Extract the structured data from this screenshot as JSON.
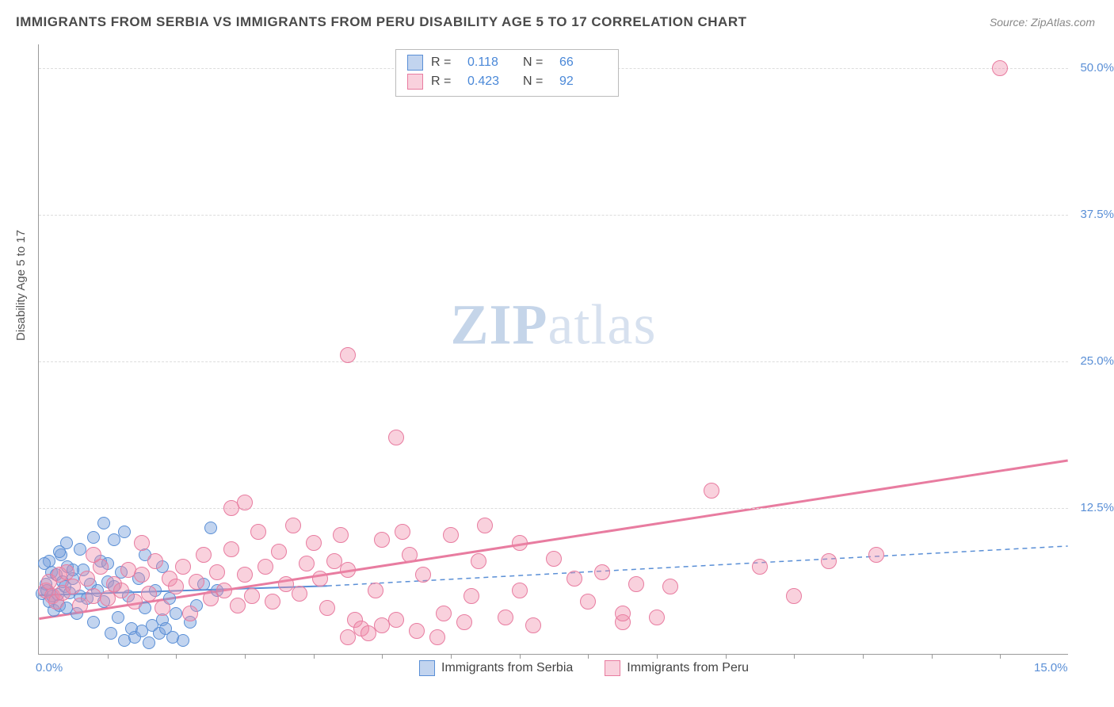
{
  "title": "IMMIGRANTS FROM SERBIA VS IMMIGRANTS FROM PERU DISABILITY AGE 5 TO 17 CORRELATION CHART",
  "source": "Source: ZipAtlas.com",
  "ylabel": "Disability Age 5 to 17",
  "watermark_bold": "ZIP",
  "watermark_rest": "atlas",
  "chart": {
    "type": "scatter",
    "xlim": [
      0,
      15
    ],
    "ylim": [
      0,
      52
    ],
    "x_tick_labels": {
      "0": "0.0%",
      "15": "15.0%"
    },
    "x_minor_ticks": [
      1,
      2,
      3,
      4,
      5,
      6,
      7,
      8,
      9,
      10,
      11,
      12,
      13,
      14
    ],
    "y_ticks": [
      12.5,
      25.0,
      37.5,
      50.0
    ],
    "y_tick_labels": [
      "12.5%",
      "25.0%",
      "37.5%",
      "50.0%"
    ],
    "grid_color": "#dddddd",
    "axis_color": "#999999",
    "background_color": "#ffffff"
  },
  "series": [
    {
      "name": "Immigrants from Serbia",
      "legend_key": "serbia",
      "R": "0.118",
      "N": "66",
      "color_fill": "rgba(120,160,220,0.45)",
      "color_stroke": "#5a8fd6",
      "trend": {
        "x1": 0,
        "y1": 5.0,
        "x2": 4.2,
        "y2": 5.8,
        "solid": true,
        "dash_x2": 15,
        "dash_y2": 9.2,
        "width": 2
      },
      "marker_radius": 8,
      "points": [
        [
          0.05,
          5.2
        ],
        [
          0.1,
          6.0
        ],
        [
          0.12,
          5.5
        ],
        [
          0.15,
          4.5
        ],
        [
          0.18,
          7.0
        ],
        [
          0.2,
          5.0
        ],
        [
          0.22,
          3.8
        ],
        [
          0.25,
          6.8
        ],
        [
          0.28,
          5.1
        ],
        [
          0.3,
          4.2
        ],
        [
          0.32,
          8.5
        ],
        [
          0.35,
          6.2
        ],
        [
          0.38,
          5.8
        ],
        [
          0.4,
          4.0
        ],
        [
          0.42,
          7.5
        ],
        [
          0.45,
          5.3
        ],
        [
          0.5,
          6.5
        ],
        [
          0.55,
          3.5
        ],
        [
          0.6,
          5.0
        ],
        [
          0.65,
          7.2
        ],
        [
          0.7,
          4.8
        ],
        [
          0.75,
          6.0
        ],
        [
          0.8,
          2.8
        ],
        [
          0.85,
          5.5
        ],
        [
          0.9,
          8.0
        ],
        [
          0.95,
          4.5
        ],
        [
          1.0,
          6.2
        ],
        [
          1.05,
          1.8
        ],
        [
          1.1,
          5.8
        ],
        [
          1.15,
          3.2
        ],
        [
          1.2,
          7.0
        ],
        [
          1.25,
          1.2
        ],
        [
          1.3,
          5.0
        ],
        [
          1.35,
          2.2
        ],
        [
          1.4,
          1.5
        ],
        [
          1.45,
          6.5
        ],
        [
          1.5,
          2.0
        ],
        [
          1.55,
          4.0
        ],
        [
          1.6,
          1.0
        ],
        [
          1.65,
          2.5
        ],
        [
          1.7,
          5.5
        ],
        [
          1.75,
          1.8
        ],
        [
          1.8,
          3.0
        ],
        [
          1.85,
          2.2
        ],
        [
          1.9,
          4.8
        ],
        [
          1.95,
          1.5
        ],
        [
          2.0,
          3.5
        ],
        [
          2.1,
          1.2
        ],
        [
          2.2,
          2.8
        ],
        [
          2.3,
          4.2
        ],
        [
          0.95,
          11.2
        ],
        [
          1.1,
          9.8
        ],
        [
          1.25,
          10.5
        ],
        [
          2.5,
          10.8
        ],
        [
          0.6,
          9.0
        ],
        [
          0.8,
          10.0
        ],
        [
          0.4,
          9.5
        ],
        [
          0.3,
          8.8
        ],
        [
          0.15,
          8.0
        ],
        [
          0.08,
          7.8
        ],
        [
          1.55,
          8.5
        ],
        [
          1.8,
          7.5
        ],
        [
          2.4,
          6.0
        ],
        [
          2.6,
          5.5
        ],
        [
          1.0,
          7.8
        ],
        [
          0.5,
          7.2
        ]
      ]
    },
    {
      "name": "Immigrants from Peru",
      "legend_key": "peru",
      "R": "0.423",
      "N": "92",
      "color_fill": "rgba(240,140,170,0.4)",
      "color_stroke": "#e87ca0",
      "trend": {
        "x1": 0,
        "y1": 3.0,
        "x2": 15,
        "y2": 16.5,
        "solid": true,
        "width": 3
      },
      "marker_radius": 10,
      "points": [
        [
          0.1,
          5.5
        ],
        [
          0.15,
          6.2
        ],
        [
          0.2,
          5.0
        ],
        [
          0.25,
          4.5
        ],
        [
          0.3,
          6.8
        ],
        [
          0.35,
          5.3
        ],
        [
          0.4,
          7.0
        ],
        [
          0.5,
          5.8
        ],
        [
          0.6,
          4.2
        ],
        [
          0.7,
          6.5
        ],
        [
          0.8,
          5.0
        ],
        [
          0.9,
          7.5
        ],
        [
          1.0,
          4.8
        ],
        [
          1.1,
          6.0
        ],
        [
          1.2,
          5.5
        ],
        [
          1.3,
          7.2
        ],
        [
          1.4,
          4.5
        ],
        [
          1.5,
          6.8
        ],
        [
          1.6,
          5.2
        ],
        [
          1.7,
          8.0
        ],
        [
          1.8,
          4.0
        ],
        [
          1.9,
          6.5
        ],
        [
          2.0,
          5.8
        ],
        [
          2.1,
          7.5
        ],
        [
          2.2,
          3.5
        ],
        [
          2.3,
          6.2
        ],
        [
          2.4,
          8.5
        ],
        [
          2.5,
          4.8
        ],
        [
          2.6,
          7.0
        ],
        [
          2.7,
          5.5
        ],
        [
          2.8,
          9.0
        ],
        [
          2.9,
          4.2
        ],
        [
          3.0,
          13.0
        ],
        [
          3.0,
          6.8
        ],
        [
          3.1,
          5.0
        ],
        [
          3.2,
          10.5
        ],
        [
          3.3,
          7.5
        ],
        [
          3.4,
          4.5
        ],
        [
          3.5,
          8.8
        ],
        [
          3.6,
          6.0
        ],
        [
          3.7,
          11.0
        ],
        [
          3.8,
          5.2
        ],
        [
          3.9,
          7.8
        ],
        [
          4.0,
          9.5
        ],
        [
          4.1,
          6.5
        ],
        [
          4.2,
          4.0
        ],
        [
          4.3,
          8.0
        ],
        [
          4.4,
          10.2
        ],
        [
          4.5,
          1.5
        ],
        [
          4.6,
          3.0
        ],
        [
          4.7,
          2.2
        ],
        [
          4.8,
          1.8
        ],
        [
          4.5,
          7.2
        ],
        [
          4.9,
          5.5
        ],
        [
          5.0,
          9.8
        ],
        [
          5.0,
          2.5
        ],
        [
          5.2,
          18.5
        ],
        [
          5.3,
          10.5
        ],
        [
          5.2,
          3.0
        ],
        [
          5.4,
          8.5
        ],
        [
          5.5,
          2.0
        ],
        [
          5.6,
          6.8
        ],
        [
          5.8,
          1.5
        ],
        [
          5.9,
          3.5
        ],
        [
          6.0,
          10.2
        ],
        [
          6.2,
          2.8
        ],
        [
          6.3,
          5.0
        ],
        [
          6.4,
          8.0
        ],
        [
          6.5,
          11.0
        ],
        [
          6.8,
          3.2
        ],
        [
          7.0,
          9.5
        ],
        [
          7.0,
          5.5
        ],
        [
          7.2,
          2.5
        ],
        [
          7.5,
          8.2
        ],
        [
          7.8,
          6.5
        ],
        [
          8.0,
          4.5
        ],
        [
          8.2,
          7.0
        ],
        [
          8.5,
          2.8
        ],
        [
          8.5,
          3.5
        ],
        [
          8.7,
          6.0
        ],
        [
          9.0,
          3.2
        ],
        [
          9.2,
          5.8
        ],
        [
          9.8,
          14.0
        ],
        [
          10.5,
          7.5
        ],
        [
          11.0,
          5.0
        ],
        [
          11.5,
          8.0
        ],
        [
          12.2,
          8.5
        ],
        [
          4.5,
          25.5
        ],
        [
          14.0,
          50.0
        ],
        [
          2.8,
          12.5
        ],
        [
          1.5,
          9.5
        ],
        [
          0.8,
          8.5
        ]
      ]
    }
  ],
  "legend_top_labels": {
    "R": "R =",
    "N": "N ="
  }
}
